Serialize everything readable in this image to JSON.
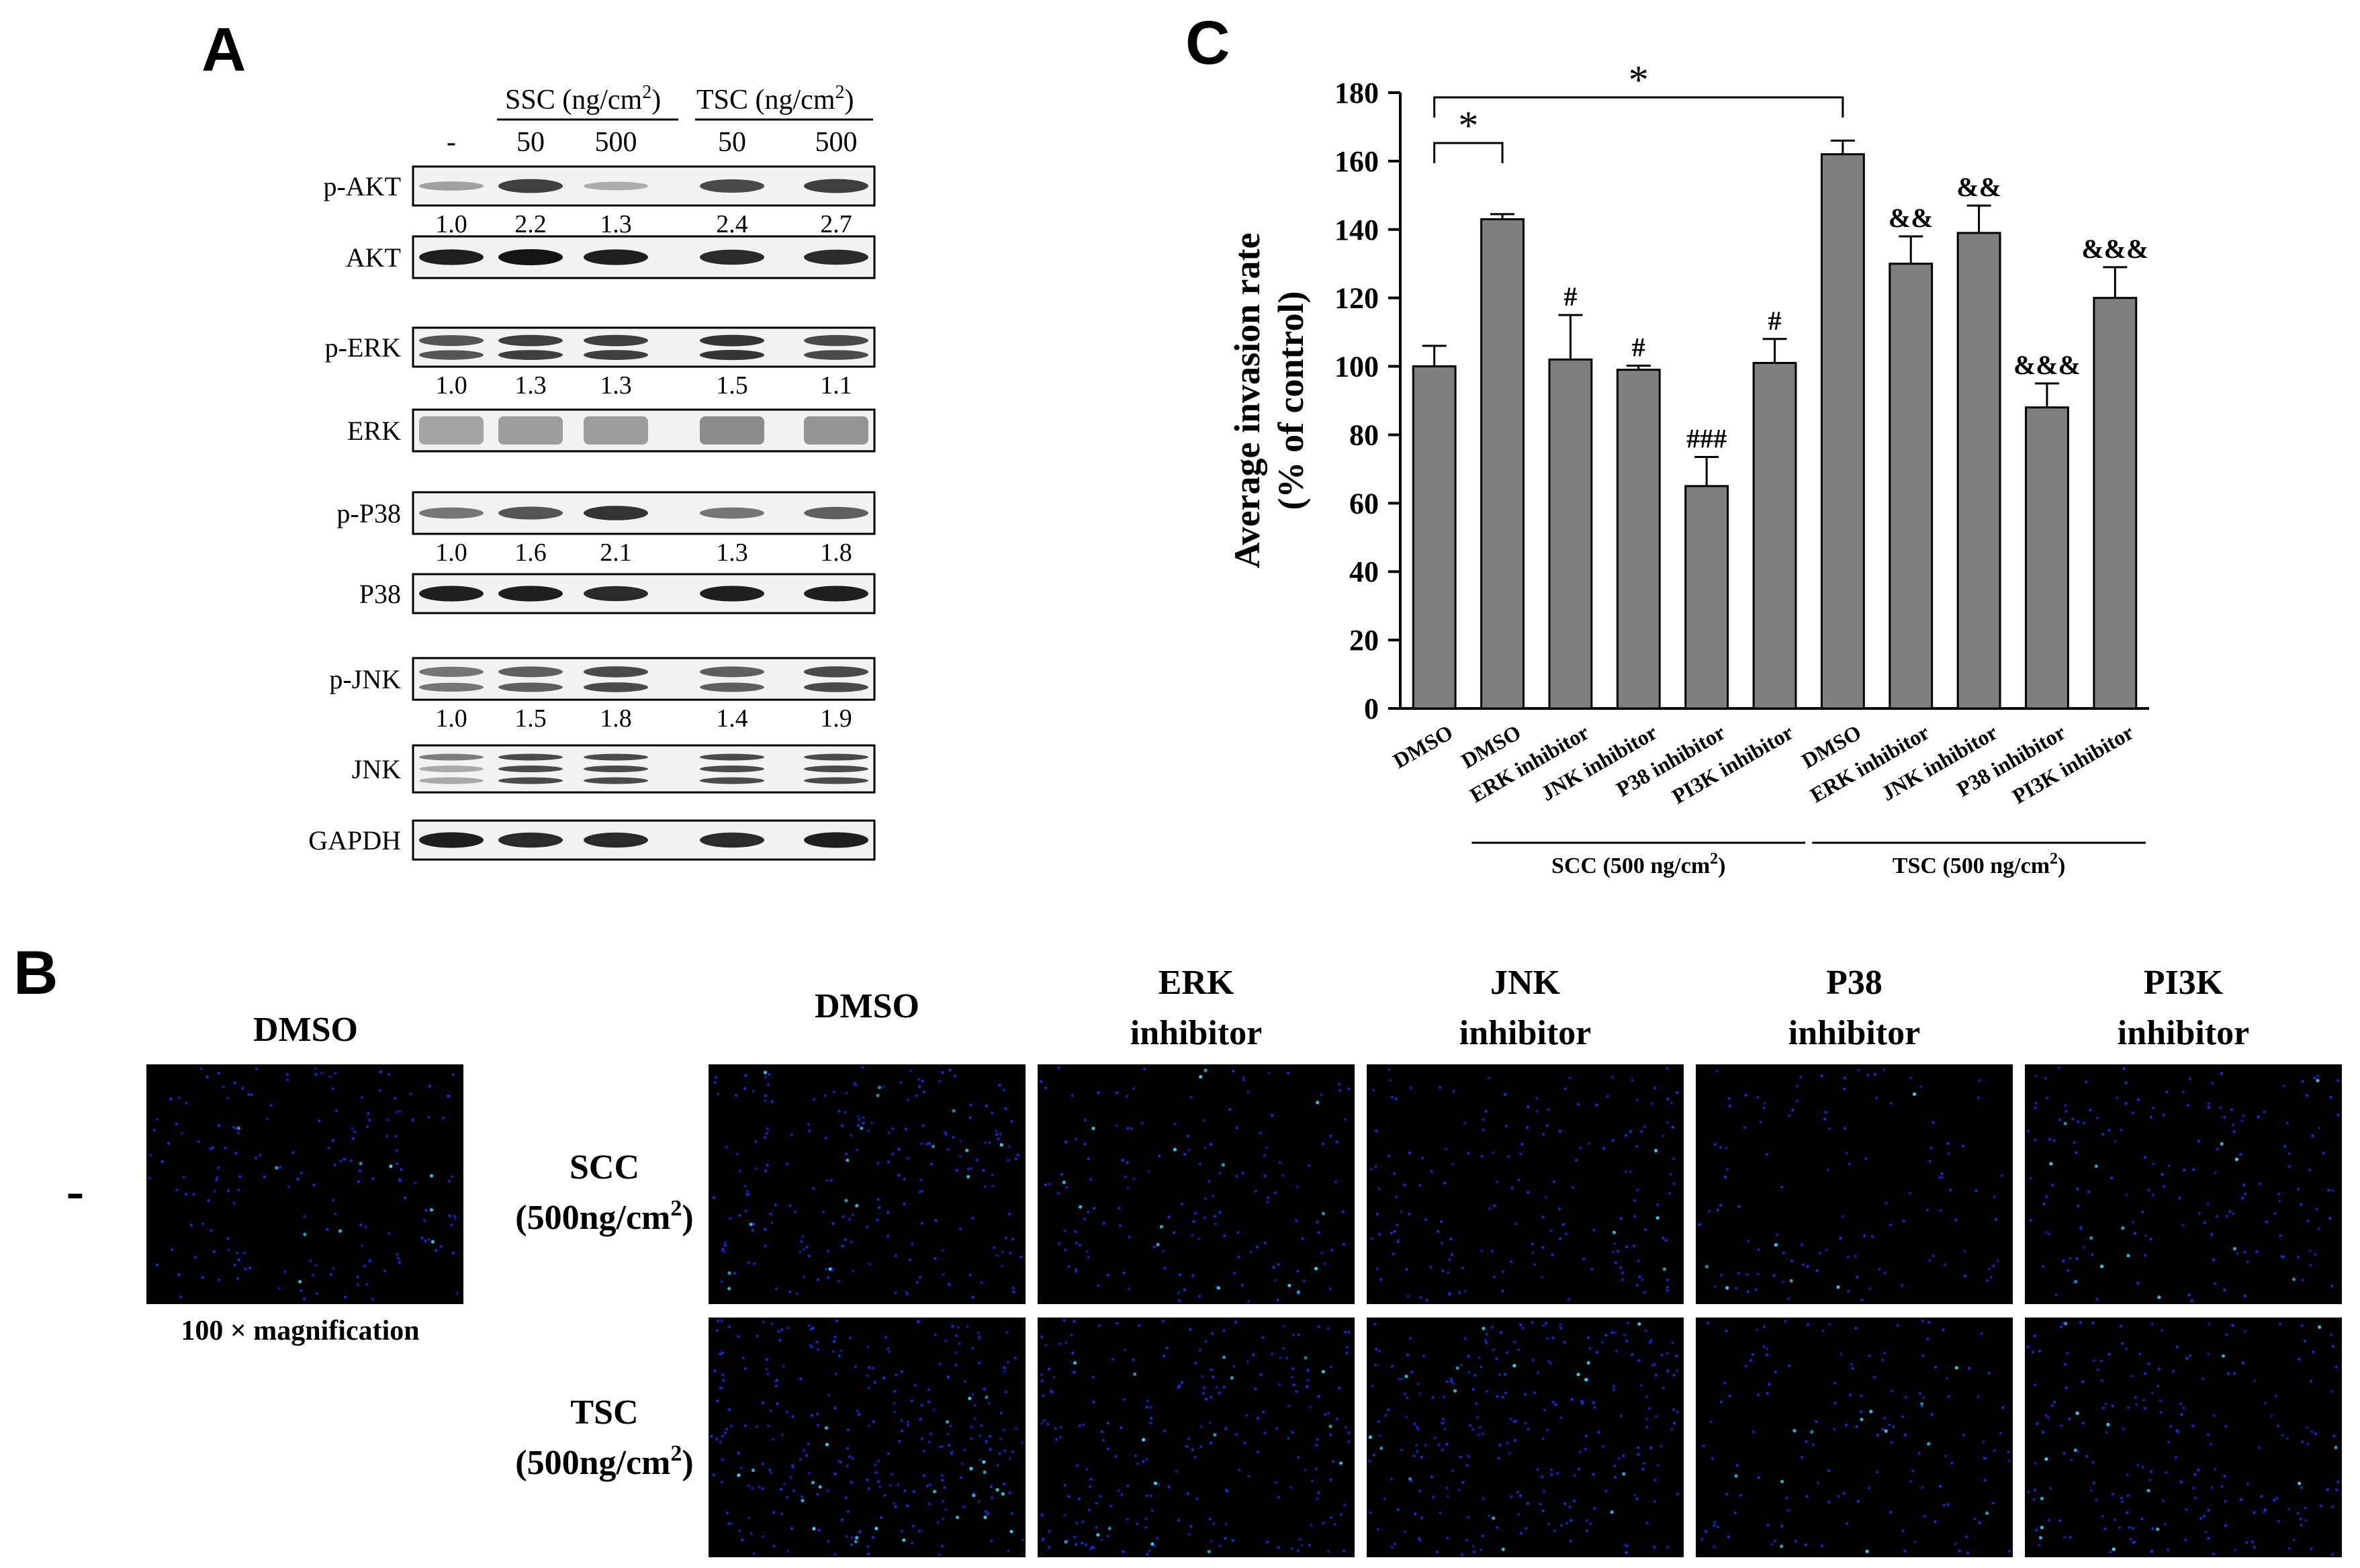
{
  "panel_a": {
    "letter": "A",
    "group_headers": [
      {
        "text": "SSC (ng/cm",
        "sup": "2",
        "close": ")"
      },
      {
        "text": "TSC (ng/cm",
        "sup": "2",
        "close": ")"
      }
    ],
    "lane_labels": [
      "-",
      "50",
      "500",
      "50",
      "500"
    ],
    "blots": [
      {
        "label": "p-AKT",
        "kind": "single",
        "intensity": [
          0.35,
          0.8,
          0.3,
          0.75,
          0.8
        ],
        "ratios": [
          "1.0",
          "2.2",
          "1.3",
          "2.4",
          "2.7"
        ]
      },
      {
        "label": "AKT",
        "kind": "single",
        "intensity": [
          0.95,
          1.0,
          0.95,
          0.9,
          0.9
        ],
        "ratios": null
      },
      {
        "label": "p-ERK",
        "kind": "double",
        "intensity": [
          0.7,
          0.8,
          0.8,
          0.85,
          0.75
        ],
        "ratios": [
          "1.0",
          "1.3",
          "1.3",
          "1.5",
          "1.1"
        ]
      },
      {
        "label": "ERK",
        "kind": "diffuse",
        "intensity": [
          0.45,
          0.5,
          0.5,
          0.6,
          0.55
        ],
        "ratios": null
      },
      {
        "label": "p-P38",
        "kind": "single",
        "intensity": [
          0.55,
          0.7,
          0.85,
          0.55,
          0.65
        ],
        "ratios": [
          "1.0",
          "1.6",
          "2.1",
          "1.3",
          "1.8"
        ]
      },
      {
        "label": "P38",
        "kind": "single",
        "intensity": [
          0.95,
          0.95,
          0.9,
          0.95,
          0.95
        ],
        "ratios": null
      },
      {
        "label": "p-JNK",
        "kind": "double",
        "intensity": [
          0.55,
          0.65,
          0.75,
          0.65,
          0.75
        ],
        "ratios": [
          "1.0",
          "1.5",
          "1.8",
          "1.4",
          "1.9"
        ]
      },
      {
        "label": "JNK",
        "kind": "triple",
        "intensity": [
          0.55,
          0.8,
          0.8,
          0.8,
          0.8
        ],
        "ratios": null
      },
      {
        "label": "GAPDH",
        "kind": "single",
        "intensity": [
          0.95,
          0.9,
          0.9,
          0.9,
          0.95
        ],
        "ratios": null
      }
    ]
  },
  "panel_b": {
    "letter": "B",
    "control_col_header": "DMSO",
    "control_row_label": "-",
    "magnification_note": "100 × magnification",
    "col_headers": [
      {
        "line1": "DMSO",
        "line2": ""
      },
      {
        "line1": "ERK",
        "line2": "inhibitor"
      },
      {
        "line1": "JNK",
        "line2": "inhibitor"
      },
      {
        "line1": "P38",
        "line2": "inhibitor"
      },
      {
        "line1": "PI3K",
        "line2": "inhibitor"
      }
    ],
    "row_labels": [
      {
        "line1": "SCC",
        "line2": "(500ng/cm",
        "sup": "2",
        "close": ")"
      },
      {
        "line1": "TSC",
        "line2": "(500ng/cm",
        "sup": "2",
        "close": ")"
      }
    ],
    "image_background": "#000000",
    "cell_color": "#1a2be0",
    "cell_highlight": "#39d6ff",
    "cell_density": {
      "control": 180,
      "scc": [
        220,
        160,
        170,
        120,
        170
      ],
      "tsc": [
        300,
        240,
        270,
        150,
        210
      ]
    }
  },
  "panel_c": {
    "letter": "C",
    "chart_data": {
      "type": "bar",
      "categories": [
        "DMSO",
        "DMSO",
        "ERK inhibitor",
        "JNK inhibitor",
        "P38 inhibitor",
        "PI3K inhibitor",
        "DMSO",
        "ERK inhibitor",
        "JNK inhibitor",
        "P38 inhibitor",
        "PI3K inhibitor"
      ],
      "values": [
        100,
        143,
        102,
        99,
        65,
        101,
        162,
        130,
        139,
        88,
        120
      ],
      "errors": [
        6,
        1.5,
        13,
        1.2,
        8.5,
        7,
        4,
        8,
        8,
        7,
        9
      ],
      "annotations": [
        "",
        "",
        "#",
        "#",
        "###",
        "#",
        "",
        "&&",
        "&&",
        "&&&",
        "&&&"
      ],
      "ylabel_line1": "Average invasion rate",
      "ylabel_line2": "(% of control)",
      "xlabel": "",
      "ylim": [
        0,
        180
      ],
      "yticks": [
        0,
        20,
        40,
        60,
        80,
        100,
        120,
        140,
        160,
        180
      ],
      "bar_color": "#7f7f7f",
      "grid": false,
      "groups": [
        {
          "label": "SCC (500 ng/cm",
          "sup": "2",
          "close": ")",
          "from": 1,
          "to": 5
        },
        {
          "label": "TSC (500 ng/cm",
          "sup": "2",
          "close": ")",
          "from": 6,
          "to": 10
        }
      ],
      "significance": [
        {
          "from": 0,
          "to": 1,
          "label": "*"
        },
        {
          "from": 0,
          "to": 6,
          "label": "*"
        }
      ]
    }
  }
}
